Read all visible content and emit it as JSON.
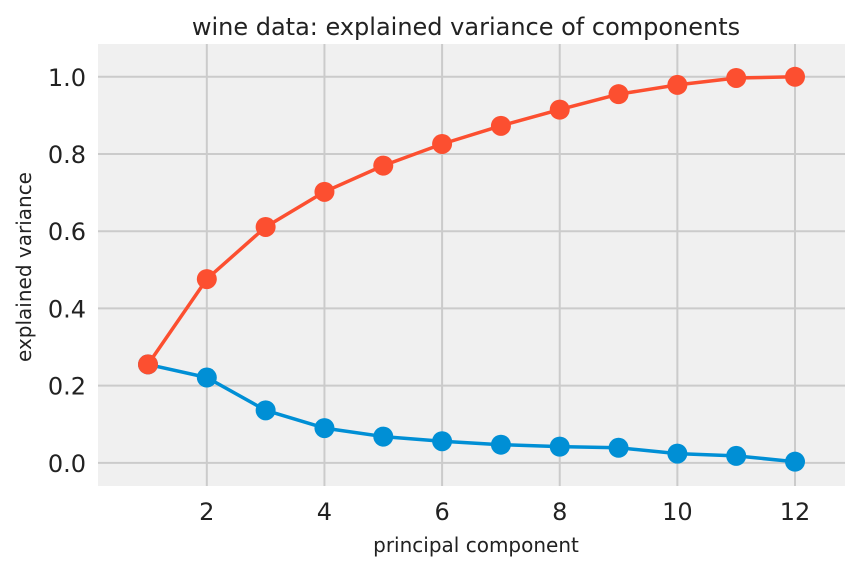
{
  "chart_data": {
    "type": "line",
    "title": "wine data: explained variance of components",
    "xlabel": "principal component",
    "ylabel": "explained variance",
    "x": [
      1,
      2,
      3,
      4,
      5,
      6,
      7,
      8,
      9,
      10,
      11,
      12
    ],
    "series": [
      {
        "color": "#fc4f30",
        "values": [
          0.255,
          0.476,
          0.611,
          0.702,
          0.77,
          0.826,
          0.873,
          0.915,
          0.955,
          0.979,
          0.997,
          1.0
        ]
      },
      {
        "color": "#008fd5",
        "values": [
          0.255,
          0.221,
          0.136,
          0.09,
          0.068,
          0.056,
          0.047,
          0.042,
          0.039,
          0.024,
          0.018,
          0.003
        ]
      }
    ],
    "xlim": [
      0.15,
      12.85
    ],
    "ylim": [
      -0.06,
      1.085
    ],
    "xticks": [
      2,
      4,
      6,
      8,
      10,
      12
    ],
    "yticks": [
      0.0,
      0.2,
      0.4,
      0.6,
      0.8,
      1.0
    ],
    "ytick_labels": [
      "0.0",
      "0.2",
      "0.4",
      "0.6",
      "0.8",
      "1.0"
    ],
    "grid": true,
    "plot_background": "#f0f0f0",
    "grid_color": "#cbcbcb"
  }
}
